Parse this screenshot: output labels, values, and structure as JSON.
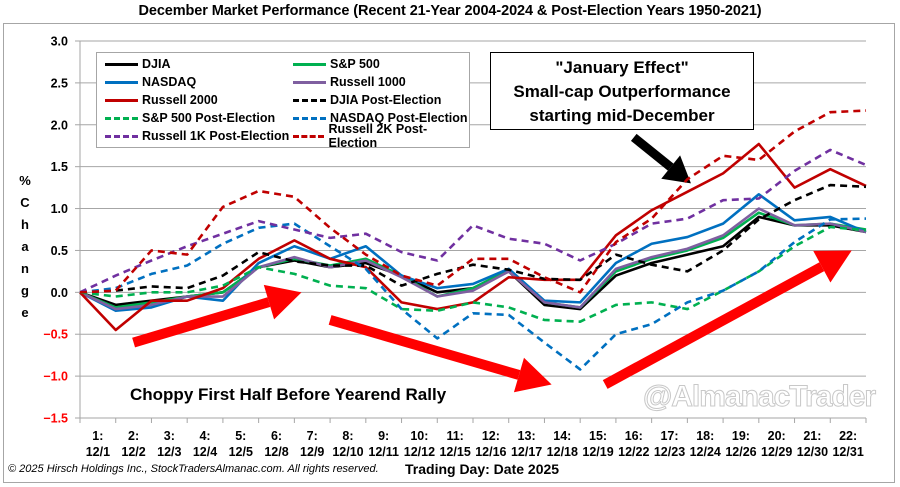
{
  "chart_data": {
    "type": "line",
    "title": "December Market Performance (Recent 21-Year 2004-2024 & Post-Election Years 1950-2021)",
    "xlabel": "Trading Day: Date 2025",
    "ylabel": "% Change",
    "ylabel_letters": [
      "%",
      "C",
      "h",
      "a",
      "n",
      "g",
      "e"
    ],
    "ylim": [
      -1.5,
      3.0
    ],
    "yticks": [
      3.0,
      2.5,
      2.0,
      1.5,
      1.0,
      0.5,
      0.0,
      -0.5,
      -1.0,
      -1.5
    ],
    "ytick_labels": [
      "3.0",
      "2.5",
      "2.0",
      "1.5",
      "1.0",
      "0.5",
      "0.0",
      "−0.5",
      "−1.0",
      "−1.5"
    ],
    "negative_tick_color": "#ff0000",
    "grid": true,
    "x": [
      0,
      1,
      2,
      3,
      4,
      5,
      6,
      7,
      8,
      9,
      10,
      11,
      12,
      13,
      14,
      15,
      16,
      17,
      18,
      19,
      20,
      21,
      22
    ],
    "categories": [
      {
        "day": "1:",
        "date": "12/1"
      },
      {
        "day": "2:",
        "date": "12/2"
      },
      {
        "day": "3:",
        "date": "12/3"
      },
      {
        "day": "4:",
        "date": "12/4"
      },
      {
        "day": "5:",
        "date": "12/5"
      },
      {
        "day": "6:",
        "date": "12/8"
      },
      {
        "day": "7:",
        "date": "12/9"
      },
      {
        "day": "8:",
        "date": "12/10"
      },
      {
        "day": "9:",
        "date": "12/11"
      },
      {
        "day": "10:",
        "date": "12/12"
      },
      {
        "day": "11:",
        "date": "12/15"
      },
      {
        "day": "12:",
        "date": "12/16"
      },
      {
        "day": "13:",
        "date": "12/17"
      },
      {
        "day": "14:",
        "date": "12/18"
      },
      {
        "day": "15:",
        "date": "12/19"
      },
      {
        "day": "16:",
        "date": "12/22"
      },
      {
        "day": "17:",
        "date": "12/23"
      },
      {
        "day": "18:",
        "date": "12/24"
      },
      {
        "day": "19:",
        "date": "12/26"
      },
      {
        "day": "20:",
        "date": "12/29"
      },
      {
        "day": "21:",
        "date": "12/30"
      },
      {
        "day": "22:",
        "date": "12/31"
      }
    ],
    "legend_position": "top-left",
    "series": [
      {
        "name": "DJIA",
        "color": "#000000",
        "dashed": false,
        "values": [
          0,
          -0.15,
          -0.1,
          -0.05,
          0.0,
          0.3,
          0.38,
          0.3,
          0.35,
          0.2,
          0.0,
          0.05,
          0.25,
          -0.15,
          -0.2,
          0.2,
          0.35,
          0.45,
          0.55,
          0.9,
          0.8,
          0.8,
          0.72
        ]
      },
      {
        "name": "S&P 500",
        "color": "#00b050",
        "dashed": false,
        "values": [
          0,
          -0.18,
          -0.12,
          -0.05,
          0.0,
          0.3,
          0.4,
          0.32,
          0.4,
          0.2,
          -0.05,
          0.05,
          0.27,
          -0.12,
          -0.18,
          0.25,
          0.4,
          0.5,
          0.65,
          0.95,
          0.8,
          0.82,
          0.75
        ]
      },
      {
        "name": "NASDAQ",
        "color": "#0070c0",
        "dashed": false,
        "values": [
          0,
          -0.22,
          -0.18,
          -0.05,
          -0.1,
          0.35,
          0.55,
          0.4,
          0.55,
          0.2,
          0.05,
          0.1,
          0.28,
          -0.1,
          -0.12,
          0.35,
          0.58,
          0.66,
          0.82,
          1.17,
          0.86,
          0.9,
          0.72
        ]
      },
      {
        "name": "Russell 1000",
        "color": "#7f5fa0",
        "dashed": false,
        "values": [
          0,
          -0.2,
          -0.15,
          -0.05,
          -0.05,
          0.3,
          0.42,
          0.3,
          0.38,
          0.18,
          -0.05,
          0.02,
          0.25,
          -0.12,
          -0.18,
          0.28,
          0.42,
          0.52,
          0.68,
          1.0,
          0.8,
          0.82,
          0.72
        ]
      },
      {
        "name": "Russell 2000",
        "color": "#c00000",
        "dashed": false,
        "values": [
          0,
          -0.45,
          -0.1,
          -0.1,
          0.05,
          0.4,
          0.62,
          0.4,
          0.3,
          -0.12,
          -0.2,
          -0.12,
          0.18,
          0.15,
          0.15,
          0.68,
          0.98,
          1.2,
          1.42,
          1.77,
          1.25,
          1.47,
          1.27
        ]
      },
      {
        "name": "DJIA Post-Election",
        "color": "#000000",
        "dashed": true,
        "values": [
          0,
          0.02,
          0.07,
          0.05,
          0.2,
          0.48,
          0.37,
          0.32,
          0.32,
          0.08,
          0.22,
          0.33,
          0.27,
          0.16,
          0.15,
          0.45,
          0.33,
          0.25,
          0.5,
          0.87,
          1.1,
          1.28,
          1.26
        ]
      },
      {
        "name": "S&P 500 Post-Election",
        "color": "#00b050",
        "dashed": true,
        "values": [
          0,
          -0.05,
          0.0,
          0.0,
          0.08,
          0.3,
          0.22,
          0.08,
          0.05,
          -0.2,
          -0.22,
          -0.12,
          -0.18,
          -0.33,
          -0.35,
          -0.15,
          -0.12,
          -0.2,
          0.02,
          0.25,
          0.55,
          0.78,
          0.74
        ]
      },
      {
        "name": "NASDAQ Post-Election",
        "color": "#0070c0",
        "dashed": true,
        "values": [
          0,
          0.05,
          0.22,
          0.32,
          0.58,
          0.77,
          0.82,
          0.55,
          0.28,
          -0.2,
          -0.55,
          -0.25,
          -0.27,
          -0.6,
          -0.92,
          -0.5,
          -0.38,
          -0.12,
          0.02,
          0.25,
          0.6,
          0.87,
          0.88
        ]
      },
      {
        "name": "Russell 1K Post-Election",
        "color": "#7030a0",
        "dashed": true,
        "values": [
          0,
          0.2,
          0.38,
          0.55,
          0.7,
          0.85,
          0.75,
          0.65,
          0.7,
          0.48,
          0.38,
          0.8,
          0.64,
          0.58,
          0.38,
          0.58,
          0.82,
          0.88,
          1.1,
          1.12,
          1.45,
          1.7,
          1.52
        ]
      },
      {
        "name": "Russell 2K Post-Election",
        "color": "#c00000",
        "dashed": true,
        "values": [
          0,
          0.02,
          0.5,
          0.45,
          1.02,
          1.21,
          1.14,
          0.77,
          0.45,
          0.2,
          0.08,
          0.4,
          0.4,
          0.18,
          0.0,
          0.6,
          0.88,
          1.35,
          1.63,
          1.58,
          1.92,
          2.15,
          2.17
        ]
      }
    ],
    "annotations": {
      "callout_lines": [
        "\"January Effect\"",
        "Small-cap Outperformance",
        "starting mid-December"
      ],
      "choppy_text": "Choppy First Half Before Yearend Rally",
      "arrows": [
        {
          "color": "#ff0000",
          "from": [
            1.5,
            -0.6
          ],
          "to": [
            6.2,
            0.0
          ],
          "meaning": "rise"
        },
        {
          "color": "#ff0000",
          "from": [
            7.0,
            -0.33
          ],
          "to": [
            13.2,
            -1.1
          ],
          "meaning": "fall"
        },
        {
          "color": "#ff0000",
          "from": [
            14.7,
            -1.1
          ],
          "to": [
            21.6,
            0.5
          ],
          "meaning": "rally"
        },
        {
          "color": "#000000",
          "from": [
            15.5,
            1.85
          ],
          "to": [
            17.1,
            1.3
          ],
          "meaning": "pointer"
        }
      ]
    }
  },
  "footer": {
    "copyright": "© 2025 Hirsch Holdings Inc., StockTradersAlmanac.com. All rights reserved.",
    "watermark": "@AlmanacTrader"
  }
}
